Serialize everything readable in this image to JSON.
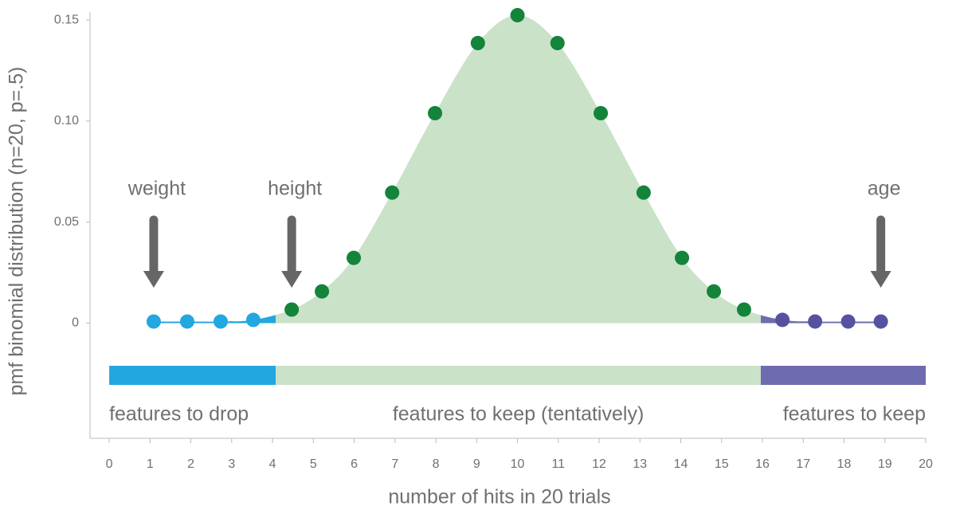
{
  "chart_data": {
    "type": "scatter",
    "y_label": "pmf binomial distribution (n=20, p=.5)",
    "x_label": "number of hits in 20 trials",
    "xlim": [
      -0.47,
      20
    ],
    "xticks": [
      0,
      1,
      2,
      3,
      4,
      5,
      6,
      7,
      8,
      9,
      10,
      11,
      12,
      13,
      14,
      15,
      16,
      17,
      18,
      19,
      20
    ],
    "ylim": [
      -0.057,
      0.154
    ],
    "yticks": [
      0,
      0.05,
      {
        "value": 0.1,
        "label": "0.10"
      },
      0.15
    ],
    "series": [
      {
        "name": "features to drop",
        "color": "#22a7e0",
        "area_color": "#22a7e0",
        "x": [
          1.09,
          1.91,
          2.73,
          3.53
        ],
        "values": [
          0.0008,
          0.0008,
          0.0008,
          0.0016
        ]
      },
      {
        "name": "features to keep (tentatively)",
        "color": "#13843a",
        "area_color": "#c9e2c8",
        "x": [
          4.47,
          5.21,
          5.99,
          6.93,
          7.98,
          9.03,
          10.0,
          10.98,
          12.04,
          13.09,
          14.03,
          14.81,
          15.55
        ],
        "values": [
          0.0067,
          0.0157,
          0.0323,
          0.0646,
          0.1039,
          0.1386,
          0.1524,
          0.1386,
          0.1039,
          0.0646,
          0.0323,
          0.0157,
          0.0067
        ]
      },
      {
        "name": "features to keep",
        "color": "#5552a0",
        "area_color": "#6f6bb0",
        "x": [
          16.49,
          17.29,
          18.1,
          18.9
        ],
        "values": [
          0.0016,
          0.0008,
          0.0008,
          0.0008
        ]
      }
    ],
    "regions": [
      {
        "label": "features to drop",
        "from": 0,
        "to": 4.08,
        "color": "#22a7e0"
      },
      {
        "label": "features to keep (tentatively)",
        "from": 4.08,
        "to": 15.96,
        "color": "#c9e2c8"
      },
      {
        "label": "features to keep",
        "from": 15.96,
        "to": 20,
        "color": "#6f6bb0"
      }
    ],
    "annotations": [
      {
        "text": "weight",
        "x": 1.09
      },
      {
        "text": "height",
        "x": 4.47
      },
      {
        "text": "age",
        "x": 18.9
      }
    ]
  }
}
